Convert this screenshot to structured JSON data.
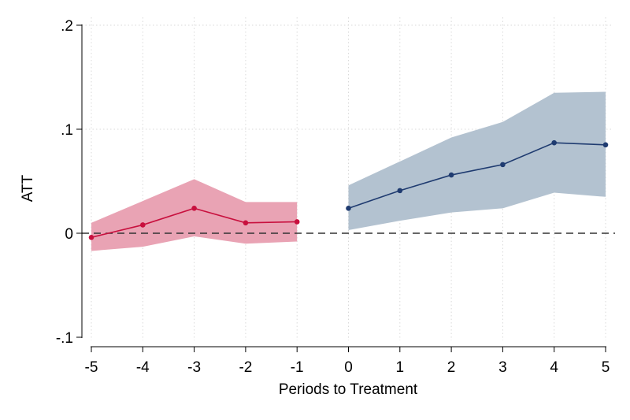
{
  "chart_data": {
    "type": "line",
    "title": "",
    "xlabel": "Periods to Treatment",
    "ylabel": "ATT",
    "xlim": [
      -5,
      5
    ],
    "ylim": [
      -0.1,
      0.2
    ],
    "x_ticks": [
      -5,
      -4,
      -3,
      -2,
      -1,
      0,
      1,
      2,
      3,
      4,
      5
    ],
    "x_tick_labels": [
      "-5",
      "-4",
      "-3",
      "-2",
      "-1",
      "0",
      "1",
      "2",
      "3",
      "4",
      "5"
    ],
    "y_ticks": [
      -0.1,
      0,
      0.1,
      0.2
    ],
    "y_tick_labels": [
      "-.1",
      "0",
      ".1",
      ".2"
    ],
    "grid": true,
    "reference_line_y": 0,
    "series": [
      {
        "x": [
          -5,
          -4,
          -3,
          -2,
          -1
        ],
        "values": [
          -0.004,
          0.008,
          0.024,
          0.01,
          0.011
        ],
        "ci_lower": [
          -0.017,
          -0.013,
          -0.003,
          -0.01,
          -0.008
        ],
        "ci_upper": [
          0.01,
          0.031,
          0.052,
          0.03,
          0.03
        ],
        "color": "#c8103e",
        "band_color": "#e9a3b4"
      },
      {
        "x": [
          0,
          1,
          2,
          3,
          4,
          5
        ],
        "values": [
          0.024,
          0.041,
          0.056,
          0.066,
          0.087,
          0.085
        ],
        "ci_lower": [
          0.003,
          0.012,
          0.02,
          0.024,
          0.039,
          0.035
        ],
        "ci_upper": [
          0.046,
          0.069,
          0.092,
          0.107,
          0.135,
          0.136
        ],
        "color": "#1f3b70",
        "band_color": "#b3c2d0"
      }
    ]
  }
}
